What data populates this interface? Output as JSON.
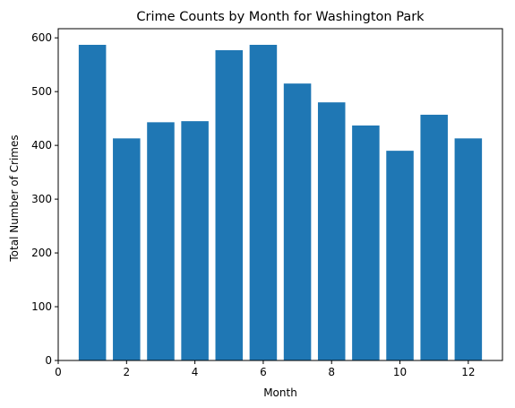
{
  "chart_data": {
    "type": "bar",
    "title": "Crime Counts by Month for Washington Park",
    "xlabel": "Month",
    "ylabel": "Total Number of Crimes",
    "x": [
      1,
      2,
      3,
      4,
      5,
      6,
      7,
      8,
      9,
      10,
      11,
      12
    ],
    "values": [
      587,
      413,
      443,
      445,
      577,
      587,
      515,
      480,
      437,
      390,
      457,
      413
    ],
    "xlim": [
      0,
      13
    ],
    "ylim": [
      0,
      617
    ],
    "xticks": [
      0,
      2,
      4,
      6,
      8,
      10,
      12
    ],
    "yticks": [
      0,
      100,
      200,
      300,
      400,
      500,
      600
    ],
    "grid": false,
    "legend": "none",
    "bar_color": "#1f77b4"
  }
}
